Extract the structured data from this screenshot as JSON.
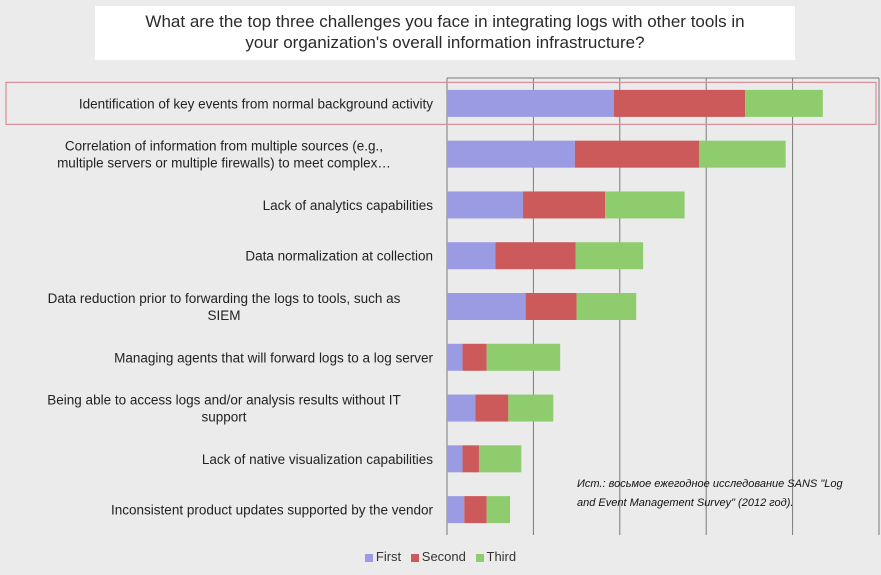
{
  "chart_data": {
    "type": "bar",
    "orientation": "horizontal",
    "stacked": true,
    "title_lines": [
      "What are the top three challenges you face in integrating logs with other tools in",
      "your organization's overall information infrastructure?"
    ],
    "categories": [
      "Identification of key events from normal background activity",
      "Correlation of information from multiple sources (e.g., multiple servers or multiple firewalls) to meet complex…",
      "Lack of analytics capabilities",
      "Data normalization at collection",
      "Data reduction prior to forwarding the logs to tools, such as SIEM",
      "Managing agents that will forward logs to a log server",
      "Being able to access logs and/or analysis results without IT support",
      "Lack of native visualization capabilities",
      "Inconsistent product updates supported by the vendor"
    ],
    "category_lines": [
      [
        "Identification of key events from normal background activity"
      ],
      [
        "Correlation of information from multiple sources (e.g.,",
        "multiple servers or multiple firewalls) to meet complex…"
      ],
      [
        "Lack of analytics capabilities"
      ],
      [
        "Data normalization at collection"
      ],
      [
        "Data reduction prior to forwarding the logs to tools, such as",
        "SIEM"
      ],
      [
        "Managing agents that will forward logs to a log server"
      ],
      [
        "Being able to access logs and/or analysis results without IT",
        "support"
      ],
      [
        "Lack of native visualization capabilities"
      ],
      [
        "Inconsistent product updates supported by the vendor"
      ]
    ],
    "series": [
      {
        "name": "First",
        "color": "#9b9be4",
        "values": [
          19.3,
          14.8,
          8.8,
          5.6,
          9.1,
          1.8,
          3.3,
          1.8,
          2.0
        ]
      },
      {
        "name": "Second",
        "color": "#cc5a5a",
        "values": [
          15.2,
          14.4,
          9.5,
          9.3,
          5.9,
          2.8,
          3.8,
          1.9,
          2.6
        ]
      },
      {
        "name": "Third",
        "color": "#8fcc6e",
        "values": [
          9.0,
          10.0,
          9.2,
          7.8,
          6.9,
          8.5,
          5.2,
          4.9,
          2.7
        ]
      }
    ],
    "xlim": [
      0,
      50
    ],
    "grid": true,
    "tick_labels_visible": false,
    "highlighted_category": "Identification of key events from normal background activity",
    "highlight_color": "#d98e96",
    "legend_position": "bottom"
  },
  "source_note_lines": [
    "Ист.: восьмое ежегодное исследование SANS \"Log",
    "and Event Management Survey\" (2012 год)."
  ]
}
